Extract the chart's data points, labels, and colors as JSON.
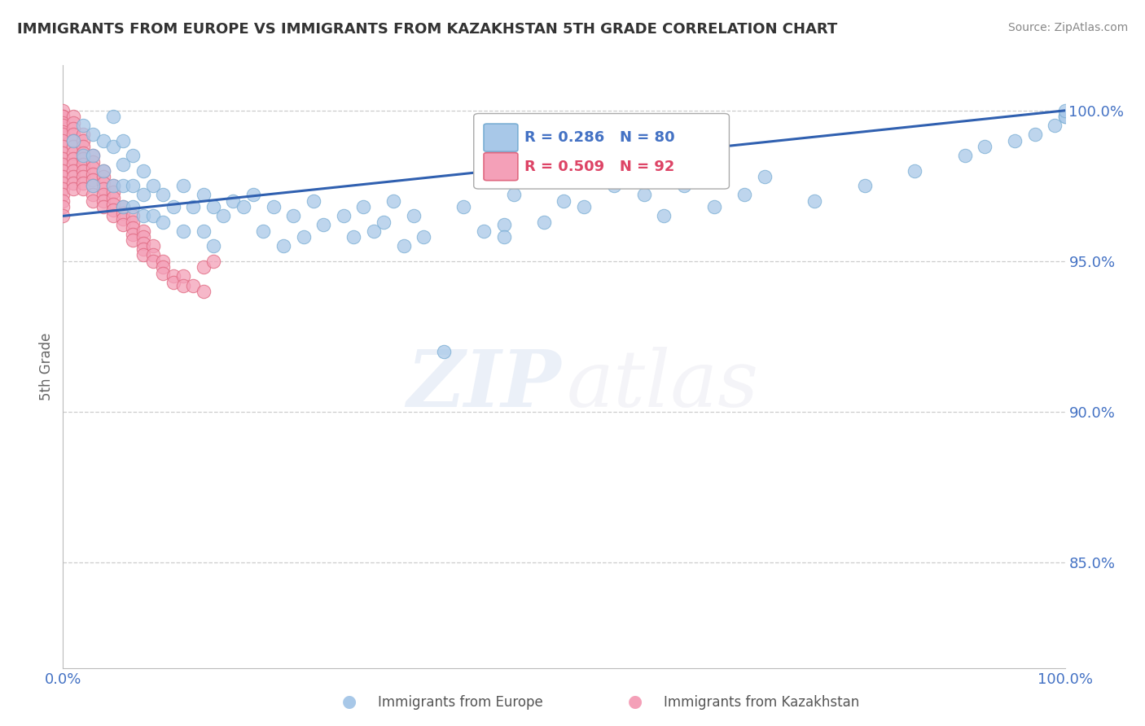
{
  "title": "IMMIGRANTS FROM EUROPE VS IMMIGRANTS FROM KAZAKHSTAN 5TH GRADE CORRELATION CHART",
  "source_text": "Source: ZipAtlas.com",
  "ylabel": "5th Grade",
  "legend_label_blue": "Immigrants from Europe",
  "legend_label_pink": "Immigrants from Kazakhstan",
  "legend_R_blue": "R = 0.286",
  "legend_N_blue": "N = 80",
  "legend_R_pink": "R = 0.509",
  "legend_N_pink": "N = 92",
  "xlim": [
    0.0,
    1.0
  ],
  "ylim": [
    0.815,
    1.015
  ],
  "yticks": [
    0.85,
    0.9,
    0.95,
    1.0
  ],
  "ytick_labels": [
    "85.0%",
    "90.0%",
    "95.0%",
    "100.0%"
  ],
  "color_blue": "#a8c8e8",
  "color_blue_edge": "#7aaed4",
  "color_pink": "#f4a0b8",
  "color_pink_edge": "#e06880",
  "line_color": "#3060b0",
  "title_color": "#333333",
  "axis_color": "#4472c4",
  "grid_color": "#cccccc",
  "background_color": "#ffffff",
  "blue_x": [
    0.01,
    0.02,
    0.02,
    0.03,
    0.03,
    0.03,
    0.04,
    0.04,
    0.05,
    0.05,
    0.05,
    0.06,
    0.06,
    0.06,
    0.06,
    0.07,
    0.07,
    0.07,
    0.08,
    0.08,
    0.08,
    0.09,
    0.09,
    0.1,
    0.1,
    0.11,
    0.12,
    0.12,
    0.13,
    0.14,
    0.14,
    0.15,
    0.15,
    0.16,
    0.17,
    0.18,
    0.19,
    0.2,
    0.21,
    0.22,
    0.23,
    0.24,
    0.25,
    0.26,
    0.28,
    0.29,
    0.3,
    0.31,
    0.32,
    0.33,
    0.34,
    0.35,
    0.36,
    0.38,
    0.4,
    0.42,
    0.44,
    0.44,
    0.45,
    0.48,
    0.5,
    0.52,
    0.55,
    0.58,
    0.6,
    0.62,
    0.65,
    0.68,
    0.7,
    0.75,
    0.8,
    0.85,
    0.9,
    0.92,
    0.95,
    0.97,
    0.99,
    1.0,
    1.0,
    1.0
  ],
  "blue_y": [
    0.99,
    0.995,
    0.985,
    0.992,
    0.985,
    0.975,
    0.99,
    0.98,
    0.998,
    0.988,
    0.975,
    0.99,
    0.982,
    0.975,
    0.968,
    0.985,
    0.975,
    0.968,
    0.98,
    0.972,
    0.965,
    0.975,
    0.965,
    0.972,
    0.963,
    0.968,
    0.975,
    0.96,
    0.968,
    0.972,
    0.96,
    0.968,
    0.955,
    0.965,
    0.97,
    0.968,
    0.972,
    0.96,
    0.968,
    0.955,
    0.965,
    0.958,
    0.97,
    0.962,
    0.965,
    0.958,
    0.968,
    0.96,
    0.963,
    0.97,
    0.955,
    0.965,
    0.958,
    0.92,
    0.968,
    0.96,
    0.962,
    0.958,
    0.972,
    0.963,
    0.97,
    0.968,
    0.975,
    0.972,
    0.965,
    0.975,
    0.968,
    0.972,
    0.978,
    0.97,
    0.975,
    0.98,
    0.985,
    0.988,
    0.99,
    0.992,
    0.995,
    0.998,
    0.998,
    1.0
  ],
  "pink_x": [
    0.0,
    0.0,
    0.0,
    0.0,
    0.0,
    0.0,
    0.0,
    0.0,
    0.0,
    0.0,
    0.0,
    0.0,
    0.0,
    0.0,
    0.0,
    0.0,
    0.0,
    0.0,
    0.0,
    0.0,
    0.01,
    0.01,
    0.01,
    0.01,
    0.01,
    0.01,
    0.01,
    0.01,
    0.01,
    0.01,
    0.01,
    0.01,
    0.01,
    0.02,
    0.02,
    0.02,
    0.02,
    0.02,
    0.02,
    0.02,
    0.02,
    0.02,
    0.02,
    0.03,
    0.03,
    0.03,
    0.03,
    0.03,
    0.03,
    0.03,
    0.03,
    0.04,
    0.04,
    0.04,
    0.04,
    0.04,
    0.04,
    0.04,
    0.05,
    0.05,
    0.05,
    0.05,
    0.05,
    0.05,
    0.06,
    0.06,
    0.06,
    0.06,
    0.07,
    0.07,
    0.07,
    0.07,
    0.07,
    0.08,
    0.08,
    0.08,
    0.08,
    0.08,
    0.09,
    0.09,
    0.09,
    0.1,
    0.1,
    0.1,
    0.11,
    0.11,
    0.12,
    0.12,
    0.13,
    0.14,
    0.14,
    0.15
  ],
  "pink_y": [
    1.0,
    0.998,
    0.998,
    0.996,
    0.995,
    0.993,
    0.992,
    0.99,
    0.988,
    0.986,
    0.984,
    0.982,
    0.98,
    0.978,
    0.976,
    0.974,
    0.972,
    0.97,
    0.968,
    0.965,
    0.998,
    0.996,
    0.994,
    0.992,
    0.99,
    0.988,
    0.986,
    0.984,
    0.982,
    0.98,
    0.978,
    0.976,
    0.974,
    0.992,
    0.99,
    0.988,
    0.986,
    0.984,
    0.982,
    0.98,
    0.978,
    0.976,
    0.974,
    0.985,
    0.983,
    0.981,
    0.979,
    0.977,
    0.975,
    0.972,
    0.97,
    0.98,
    0.978,
    0.976,
    0.974,
    0.972,
    0.97,
    0.968,
    0.975,
    0.973,
    0.971,
    0.969,
    0.967,
    0.965,
    0.968,
    0.966,
    0.964,
    0.962,
    0.965,
    0.963,
    0.961,
    0.959,
    0.957,
    0.96,
    0.958,
    0.956,
    0.954,
    0.952,
    0.955,
    0.952,
    0.95,
    0.95,
    0.948,
    0.946,
    0.945,
    0.943,
    0.945,
    0.942,
    0.942,
    0.948,
    0.94,
    0.95
  ],
  "trend_x_start": 0.0,
  "trend_x_end": 1.0,
  "trend_y_start": 0.965,
  "trend_y_end": 1.0
}
